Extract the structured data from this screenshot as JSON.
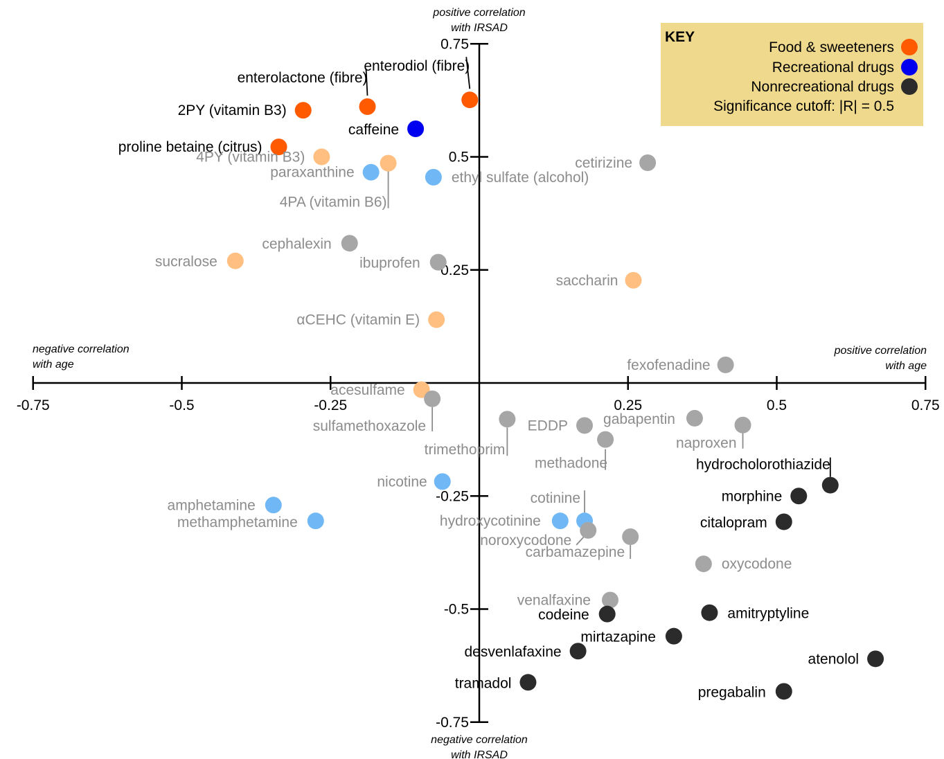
{
  "chart_data": {
    "type": "scatter",
    "title": "",
    "xlim": [
      -0.75,
      0.75
    ],
    "ylim": [
      -0.75,
      0.75
    ],
    "x_ticks": [
      "-0.75",
      "-0.5",
      "-0.25",
      "0.25",
      "0.5",
      "0.75"
    ],
    "y_ticks": [
      "0.75",
      "0.5",
      "0.25",
      "-0.25",
      "-0.5",
      "-0.75"
    ],
    "axis_labels": {
      "top": [
        "positive correlation",
        "with IRSAD"
      ],
      "bottom": [
        "negative correlation",
        "with IRSAD"
      ],
      "left": [
        "negative correlation",
        "with age"
      ],
      "right": [
        "positive correlation",
        "with age"
      ]
    },
    "legend": {
      "title": "KEY",
      "placement": "top-right",
      "background": "#efd98c",
      "entries": [
        {
          "label": "Food & sweeteners",
          "color": "#ff5a00"
        },
        {
          "label": "Recreational drugs",
          "color": "#0000f0"
        },
        {
          "label": "Nonrecreational drugs",
          "color": "#2b2b2b"
        }
      ],
      "note": "Significance cutoff: |R| = 0.5"
    },
    "colors": {
      "food_sig": "#ff5a00",
      "food_nonsig": "#ffbf80",
      "rec_sig": "#0000f0",
      "rec_nonsig": "#70b8f5",
      "nonrec_sig": "#2b2b2b",
      "nonrec_nonsig": "#a6a6a6",
      "label_sig": "#000000",
      "label_nonsig": "#8c8c8c"
    },
    "points": [
      {
        "label": "2PY (vitamin B3)",
        "x": -0.296,
        "y": 0.603,
        "category": "food",
        "significant": true
      },
      {
        "label": "enterolactone (fibre)",
        "x": -0.188,
        "y": 0.611,
        "category": "food",
        "significant": true
      },
      {
        "label": "enterodiol (fibre)",
        "x": -0.016,
        "y": 0.626,
        "category": "food",
        "significant": true
      },
      {
        "label": "caffeine",
        "x": -0.107,
        "y": 0.562,
        "category": "recreational",
        "significant": true
      },
      {
        "label": "proline betaine (citrus)",
        "x": -0.337,
        "y": 0.522,
        "category": "food",
        "significant": true
      },
      {
        "label": "4PY (vitamin B3)",
        "x": -0.265,
        "y": 0.5,
        "category": "food",
        "significant": false
      },
      {
        "label": "4PA (vitamin B6)",
        "x": -0.153,
        "y": 0.486,
        "category": "food",
        "significant": false
      },
      {
        "label": "paraxanthine",
        "x": -0.182,
        "y": 0.466,
        "category": "recreational",
        "significant": false
      },
      {
        "label": "ethyl sulfate (alcohol)",
        "x": -0.077,
        "y": 0.455,
        "category": "recreational",
        "significant": false
      },
      {
        "label": "cetirizine",
        "x": 0.283,
        "y": 0.487,
        "category": "nonrecreational",
        "significant": false
      },
      {
        "label": "cephalexin",
        "x": -0.218,
        "y": 0.309,
        "category": "nonrecreational",
        "significant": false
      },
      {
        "label": "sucralose",
        "x": -0.41,
        "y": 0.27,
        "category": "food",
        "significant": false
      },
      {
        "label": "ibuprofen",
        "x": -0.069,
        "y": 0.267,
        "category": "nonrecreational",
        "significant": false
      },
      {
        "label": "saccharin",
        "x": 0.259,
        "y": 0.227,
        "category": "food",
        "significant": false
      },
      {
        "label": "αCEHC (vitamin E)",
        "x": -0.072,
        "y": 0.14,
        "category": "food",
        "significant": false
      },
      {
        "label": "fexofenadine",
        "x": 0.414,
        "y": 0.04,
        "category": "nonrecreational",
        "significant": false
      },
      {
        "label": "acesulfame",
        "x": -0.097,
        "y": -0.015,
        "category": "food",
        "significant": false
      },
      {
        "label": "sulfamethoxazole",
        "x": -0.079,
        "y": -0.035,
        "category": "nonrecreational",
        "significant": false
      },
      {
        "label": "trimethoprim",
        "x": 0.047,
        "y": -0.08,
        "category": "nonrecreational",
        "significant": false
      },
      {
        "label": "EDDP",
        "x": 0.177,
        "y": -0.094,
        "category": "nonrecreational",
        "significant": false
      },
      {
        "label": "gabapentin",
        "x": 0.362,
        "y": -0.078,
        "category": "nonrecreational",
        "significant": false
      },
      {
        "label": "naproxen",
        "x": 0.443,
        "y": -0.093,
        "category": "nonrecreational",
        "significant": false
      },
      {
        "label": "methadone",
        "x": 0.212,
        "y": -0.125,
        "category": "nonrecreational",
        "significant": false
      },
      {
        "label": "hydrocholorothiazide",
        "x": 0.59,
        "y": -0.226,
        "category": "nonrecreational",
        "significant": true
      },
      {
        "label": "nicotine",
        "x": -0.062,
        "y": -0.218,
        "category": "recreational",
        "significant": false
      },
      {
        "label": "morphine",
        "x": 0.537,
        "y": -0.25,
        "category": "nonrecreational",
        "significant": true
      },
      {
        "label": "amphetamine",
        "x": -0.346,
        "y": -0.27,
        "category": "recreational",
        "significant": false
      },
      {
        "label": "methamphetamine",
        "x": -0.275,
        "y": -0.305,
        "category": "recreational",
        "significant": false
      },
      {
        "label": "cotinine",
        "x": 0.177,
        "y": -0.305,
        "category": "recreational",
        "significant": false
      },
      {
        "label": "hydroxycotinine",
        "x": 0.136,
        "y": -0.305,
        "category": "recreational",
        "significant": false
      },
      {
        "label": "citalopram",
        "x": 0.512,
        "y": -0.307,
        "category": "nonrecreational",
        "significant": true
      },
      {
        "label": "noroxycodone",
        "x": 0.183,
        "y": -0.326,
        "category": "nonrecreational",
        "significant": false
      },
      {
        "label": "carbamazepine",
        "x": 0.254,
        "y": -0.34,
        "category": "nonrecreational",
        "significant": false
      },
      {
        "label": "oxycodone",
        "x": 0.377,
        "y": -0.4,
        "category": "nonrecreational",
        "significant": false
      },
      {
        "label": "venalfaxine",
        "x": 0.22,
        "y": -0.48,
        "category": "nonrecreational",
        "significant": false
      },
      {
        "label": "codeine",
        "x": 0.215,
        "y": -0.511,
        "category": "nonrecreational",
        "significant": true
      },
      {
        "label": "amitryptyline",
        "x": 0.387,
        "y": -0.508,
        "category": "nonrecreational",
        "significant": true
      },
      {
        "label": "mirtazapine",
        "x": 0.327,
        "y": -0.56,
        "category": "nonrecreational",
        "significant": true
      },
      {
        "label": "desvenlafaxine",
        "x": 0.166,
        "y": -0.593,
        "category": "nonrecreational",
        "significant": true
      },
      {
        "label": "atenolol",
        "x": 0.666,
        "y": -0.61,
        "category": "nonrecreational",
        "significant": true
      },
      {
        "label": "tramadol",
        "x": 0.082,
        "y": -0.662,
        "category": "nonrecreational",
        "significant": true
      },
      {
        "label": "pregabalin",
        "x": 0.512,
        "y": -0.682,
        "category": "nonrecreational",
        "significant": true
      }
    ]
  }
}
